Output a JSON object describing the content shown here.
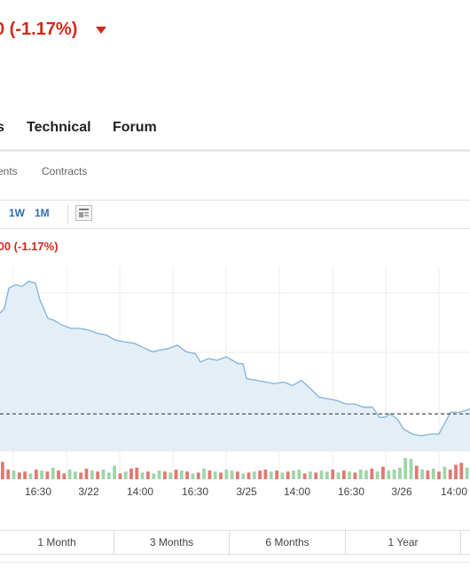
{
  "header": {
    "price_change": "0  (-1.17%)",
    "direction": "down"
  },
  "main_tabs": [
    "s",
    "Technical",
    "Forum"
  ],
  "sub_tabs": [
    "ents",
    "Contracts"
  ],
  "toolbar": {
    "ranges": [
      "1W",
      "1M"
    ],
    "layout_icon": "layout-icon"
  },
  "chart_header": {
    "change": ".00  (-1.17%)"
  },
  "periods": [
    "1 Month",
    "3 Months",
    "6 Months",
    "1 Year"
  ],
  "colors": {
    "down": "#d4281c",
    "line": "#7fb3d8",
    "area": "#e4eef7",
    "vol_up": "#9fd5a8",
    "vol_down": "#e07a74",
    "range_link": "#2a6db5"
  },
  "chart_data": {
    "type": "area",
    "x_tick_labels": [
      "16:30",
      "3/22",
      "14:00",
      "16:30",
      "3/25",
      "14:00",
      "16:30",
      "3/26",
      "14:00"
    ],
    "price_series": [
      {
        "x": 0,
        "y": 42
      },
      {
        "x": 5,
        "y": 45
      },
      {
        "x": 10,
        "y": 57
      },
      {
        "x": 18,
        "y": 59
      },
      {
        "x": 25,
        "y": 58
      },
      {
        "x": 32,
        "y": 61
      },
      {
        "x": 40,
        "y": 60
      },
      {
        "x": 45,
        "y": 50
      },
      {
        "x": 54,
        "y": 39
      },
      {
        "x": 60,
        "y": 38
      },
      {
        "x": 70,
        "y": 35
      },
      {
        "x": 80,
        "y": 33
      },
      {
        "x": 90,
        "y": 33
      },
      {
        "x": 100,
        "y": 32
      },
      {
        "x": 110,
        "y": 30
      },
      {
        "x": 120,
        "y": 29
      },
      {
        "x": 130,
        "y": 26
      },
      {
        "x": 140,
        "y": 25
      },
      {
        "x": 152,
        "y": 24
      },
      {
        "x": 160,
        "y": 22
      },
      {
        "x": 172,
        "y": 19
      },
      {
        "x": 180,
        "y": 20
      },
      {
        "x": 190,
        "y": 21
      },
      {
        "x": 200,
        "y": 23
      },
      {
        "x": 210,
        "y": 19
      },
      {
        "x": 220,
        "y": 18
      },
      {
        "x": 226,
        "y": 13
      },
      {
        "x": 235,
        "y": 15
      },
      {
        "x": 245,
        "y": 14
      },
      {
        "x": 255,
        "y": 16
      },
      {
        "x": 262,
        "y": 14
      },
      {
        "x": 268,
        "y": 12
      },
      {
        "x": 274,
        "y": 12
      },
      {
        "x": 278,
        "y": 3
      },
      {
        "x": 290,
        "y": 2
      },
      {
        "x": 300,
        "y": 1
      },
      {
        "x": 310,
        "y": 0
      },
      {
        "x": 320,
        "y": 1
      },
      {
        "x": 330,
        "y": -1
      },
      {
        "x": 340,
        "y": 2
      },
      {
        "x": 350,
        "y": -3
      },
      {
        "x": 360,
        "y": -8
      },
      {
        "x": 370,
        "y": -9
      },
      {
        "x": 380,
        "y": -10
      },
      {
        "x": 390,
        "y": -12
      },
      {
        "x": 400,
        "y": -12
      },
      {
        "x": 410,
        "y": -14
      },
      {
        "x": 420,
        "y": -14
      },
      {
        "x": 428,
        "y": -20
      },
      {
        "x": 434,
        "y": -20
      },
      {
        "x": 440,
        "y": -18
      },
      {
        "x": 448,
        "y": -21
      },
      {
        "x": 455,
        "y": -27
      },
      {
        "x": 465,
        "y": -30
      },
      {
        "x": 475,
        "y": -31
      },
      {
        "x": 485,
        "y": -30
      },
      {
        "x": 495,
        "y": -30
      },
      {
        "x": 500,
        "y": -25
      },
      {
        "x": 508,
        "y": -17
      },
      {
        "x": 518,
        "y": -17
      },
      {
        "x": 530,
        "y": -15
      }
    ],
    "reference_line_y": -18,
    "ylim": [
      -40,
      70
    ],
    "volume": [
      {
        "v": 18,
        "dir": "down"
      },
      {
        "v": 10,
        "dir": "down"
      },
      {
        "v": 9,
        "dir": "up"
      },
      {
        "v": 7,
        "dir": "down"
      },
      {
        "v": 8,
        "dir": "down"
      },
      {
        "v": 6,
        "dir": "up"
      },
      {
        "v": 10,
        "dir": "down"
      },
      {
        "v": 9,
        "dir": "up"
      },
      {
        "v": 8,
        "dir": "down"
      },
      {
        "v": 12,
        "dir": "up"
      },
      {
        "v": 9,
        "dir": "down"
      },
      {
        "v": 6,
        "dir": "down"
      },
      {
        "v": 10,
        "dir": "up"
      },
      {
        "v": 8,
        "dir": "up"
      },
      {
        "v": 7,
        "dir": "down"
      },
      {
        "v": 11,
        "dir": "down"
      },
      {
        "v": 9,
        "dir": "up"
      },
      {
        "v": 8,
        "dir": "down"
      },
      {
        "v": 10,
        "dir": "up"
      },
      {
        "v": 7,
        "dir": "up"
      },
      {
        "v": 14,
        "dir": "up"
      },
      {
        "v": 6,
        "dir": "down"
      },
      {
        "v": 8,
        "dir": "up"
      },
      {
        "v": 11,
        "dir": "down"
      },
      {
        "v": 12,
        "dir": "down"
      },
      {
        "v": 7,
        "dir": "up"
      },
      {
        "v": 8,
        "dir": "down"
      },
      {
        "v": 6,
        "dir": "up"
      },
      {
        "v": 9,
        "dir": "up"
      },
      {
        "v": 8,
        "dir": "down"
      },
      {
        "v": 7,
        "dir": "up"
      },
      {
        "v": 10,
        "dir": "down"
      },
      {
        "v": 9,
        "dir": "up"
      },
      {
        "v": 8,
        "dir": "down"
      },
      {
        "v": 6,
        "dir": "up"
      },
      {
        "v": 7,
        "dir": "down"
      },
      {
        "v": 11,
        "dir": "up"
      },
      {
        "v": 9,
        "dir": "down"
      },
      {
        "v": 8,
        "dir": "up"
      },
      {
        "v": 7,
        "dir": "down"
      },
      {
        "v": 10,
        "dir": "up"
      },
      {
        "v": 9,
        "dir": "up"
      },
      {
        "v": 8,
        "dir": "down"
      },
      {
        "v": 6,
        "dir": "up"
      },
      {
        "v": 7,
        "dir": "down"
      },
      {
        "v": 8,
        "dir": "up"
      },
      {
        "v": 9,
        "dir": "down"
      },
      {
        "v": 10,
        "dir": "down"
      },
      {
        "v": 8,
        "dir": "up"
      },
      {
        "v": 9,
        "dir": "down"
      },
      {
        "v": 7,
        "dir": "up"
      },
      {
        "v": 8,
        "dir": "down"
      },
      {
        "v": 9,
        "dir": "up"
      },
      {
        "v": 10,
        "dir": "up"
      },
      {
        "v": 6,
        "dir": "down"
      },
      {
        "v": 8,
        "dir": "up"
      },
      {
        "v": 7,
        "dir": "down"
      },
      {
        "v": 9,
        "dir": "up"
      },
      {
        "v": 8,
        "dir": "up"
      },
      {
        "v": 10,
        "dir": "down"
      },
      {
        "v": 7,
        "dir": "up"
      },
      {
        "v": 9,
        "dir": "down"
      },
      {
        "v": 8,
        "dir": "up"
      },
      {
        "v": 7,
        "dir": "down"
      },
      {
        "v": 10,
        "dir": "up"
      },
      {
        "v": 9,
        "dir": "up"
      },
      {
        "v": 11,
        "dir": "down"
      },
      {
        "v": 8,
        "dir": "up"
      },
      {
        "v": 13,
        "dir": "down"
      },
      {
        "v": 9,
        "dir": "up"
      },
      {
        "v": 10,
        "dir": "up"
      },
      {
        "v": 12,
        "dir": "up"
      },
      {
        "v": 22,
        "dir": "up"
      },
      {
        "v": 21,
        "dir": "up"
      },
      {
        "v": 14,
        "dir": "down"
      },
      {
        "v": 10,
        "dir": "up"
      },
      {
        "v": 9,
        "dir": "down"
      },
      {
        "v": 11,
        "dir": "up"
      },
      {
        "v": 8,
        "dir": "down"
      },
      {
        "v": 13,
        "dir": "up"
      },
      {
        "v": 10,
        "dir": "down"
      },
      {
        "v": 15,
        "dir": "down"
      },
      {
        "v": 17,
        "dir": "down"
      },
      {
        "v": 12,
        "dir": "up"
      }
    ]
  }
}
